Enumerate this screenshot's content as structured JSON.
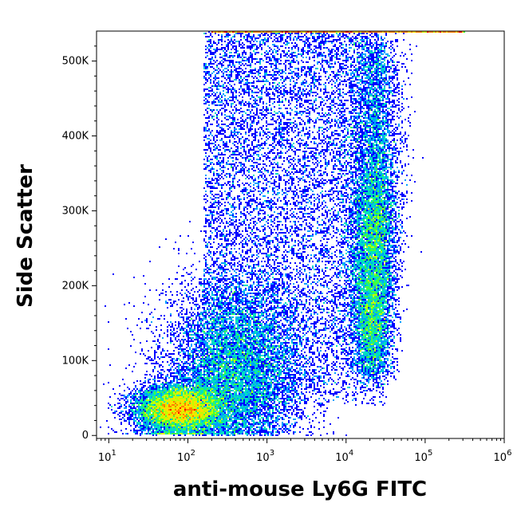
{
  "chart_data": {
    "type": "scatter",
    "subtype": "flow-cytometry-density-dot-plot",
    "xlabel": "anti-mouse Ly6G FITC",
    "ylabel": "Side Scatter",
    "x_scale": "log",
    "xlim": [
      7,
      1000000
    ],
    "ylim": [
      -4000,
      540000
    ],
    "x_ticks": [
      {
        "value": 10,
        "base": "10",
        "exp": "1"
      },
      {
        "value": 100,
        "base": "10",
        "exp": "2"
      },
      {
        "value": 1000,
        "base": "10",
        "exp": "3"
      },
      {
        "value": 10000,
        "base": "10",
        "exp": "4"
      },
      {
        "value": 100000,
        "base": "10",
        "exp": "5"
      },
      {
        "value": 1000000,
        "base": "10",
        "exp": "6"
      }
    ],
    "y_ticks": [
      {
        "value": 0,
        "label": "0"
      },
      {
        "value": 100000,
        "label": "100K"
      },
      {
        "value": 200000,
        "label": "200K"
      },
      {
        "value": 300000,
        "label": "300K"
      },
      {
        "value": 400000,
        "label": "400K"
      },
      {
        "value": 500000,
        "label": "500K"
      }
    ],
    "colormap": [
      "#0000ff",
      "#00a0ff",
      "#00e0c0",
      "#40ff40",
      "#c0ff00",
      "#ffe000",
      "#ff8000",
      "#ff0000"
    ],
    "populations": [
      {
        "name_shown": "",
        "center_x": 80,
        "center_y": 35000,
        "relative_density": 1.0
      },
      {
        "name_shown": "",
        "center_x": 400,
        "center_y": 90000,
        "relative_density": 0.55
      },
      {
        "name_shown": "",
        "center_x": 22000,
        "center_y": 220000,
        "relative_density": 0.9
      },
      {
        "name_shown": "",
        "center_x": 2000,
        "center_y": 250000,
        "relative_density": 0.3
      }
    ]
  }
}
